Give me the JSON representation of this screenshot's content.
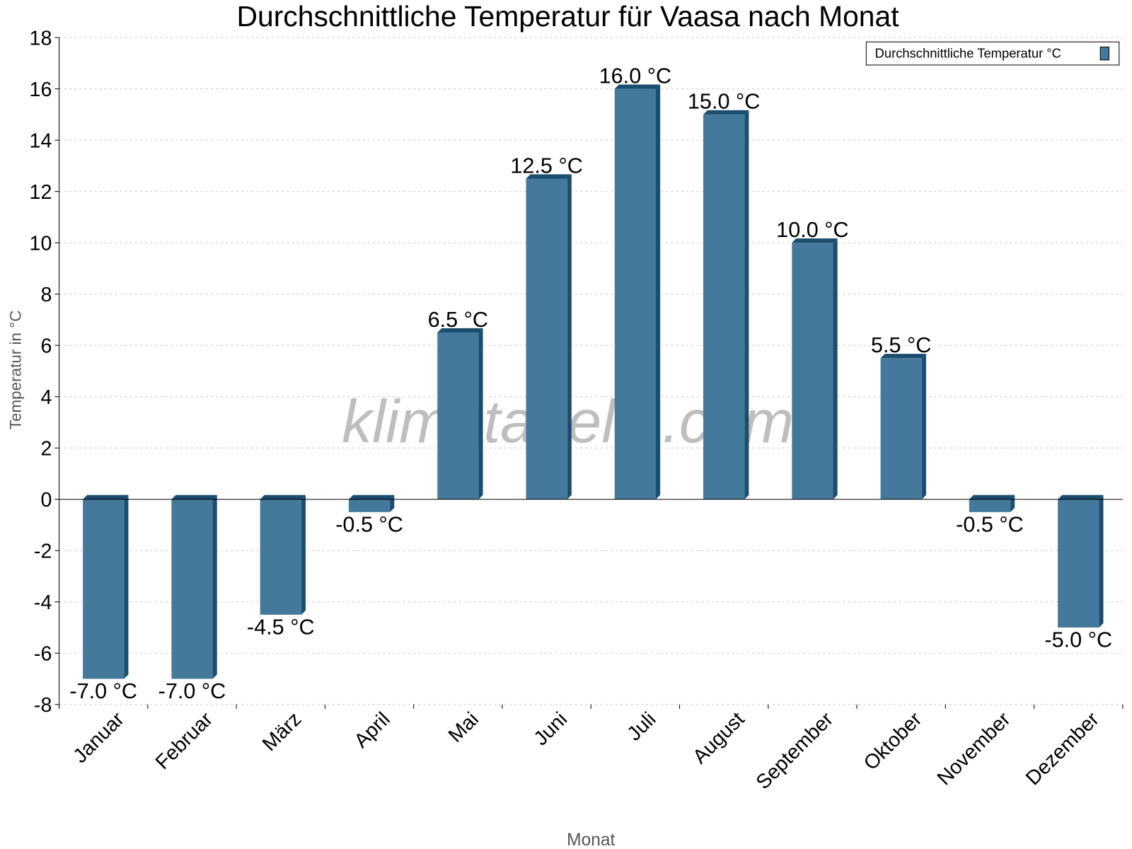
{
  "chart_data": {
    "type": "bar",
    "title": "Durchschnittliche Temperatur für Vaasa nach Monat",
    "xlabel": "Monat",
    "ylabel": "Temperatur in °C",
    "categories": [
      "Januar",
      "Februar",
      "März",
      "April",
      "Mai",
      "Juni",
      "Juli",
      "August",
      "September",
      "Oktober",
      "November",
      "Dezember"
    ],
    "series": [
      {
        "name": "Durchschnittliche Temperatur °C",
        "values": [
          -7.0,
          -7.0,
          -4.5,
          -0.5,
          6.5,
          12.5,
          16.0,
          15.0,
          10.0,
          5.5,
          -0.5,
          -5.0
        ]
      }
    ],
    "data_labels": [
      "-7.0 °C",
      "-7.0 °C",
      "-4.5 °C",
      "-0.5 °C",
      "6.5 °C",
      "12.5 °C",
      "16.0 °C",
      "15.0 °C",
      "10.0 °C",
      "5.5 °C",
      "-0.5 °C",
      "-5.0 °C"
    ],
    "ylim": [
      -8,
      18
    ],
    "yticks": [
      "-8",
      "-6",
      "-4",
      "-2",
      "0",
      "2",
      "4",
      "6",
      "8",
      "10",
      "12",
      "14",
      "16",
      "18"
    ],
    "grid": true,
    "legend_position": "top-right",
    "colors": {
      "bar": "#45799b",
      "bar_side": "#1a4d6e"
    },
    "watermark": "klimatabelle.com"
  }
}
